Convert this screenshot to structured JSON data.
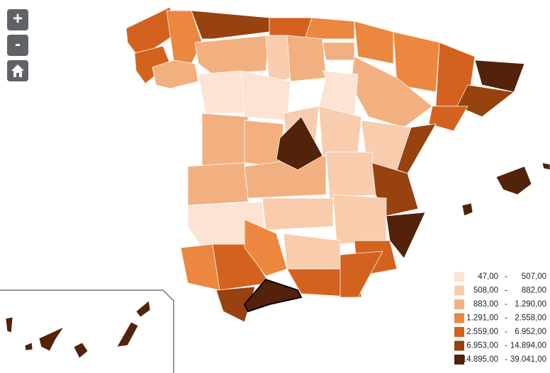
{
  "controls": {
    "zoom_in": "+",
    "zoom_out": "-"
  },
  "legend": {
    "separator": "-",
    "items": [
      {
        "from": "47,00",
        "to": "507,00",
        "color": "#fde3d3"
      },
      {
        "from": "508,00",
        "to": "882,00",
        "color": "#f9ccad"
      },
      {
        "from": "883,00",
        "to": "1.290,00",
        "color": "#f2b080"
      },
      {
        "from": "1.291,00",
        "to": "2.558,00",
        "color": "#ec8740"
      },
      {
        "from": "2.559,00",
        "to": "6.952,00",
        "color": "#d4621f"
      },
      {
        "from": "6.953,00",
        "to": "14.894,00",
        "color": "#97420f"
      },
      {
        "from": "14.895,00",
        "to": "39.041,00",
        "color": "#53220a"
      }
    ]
  }
}
